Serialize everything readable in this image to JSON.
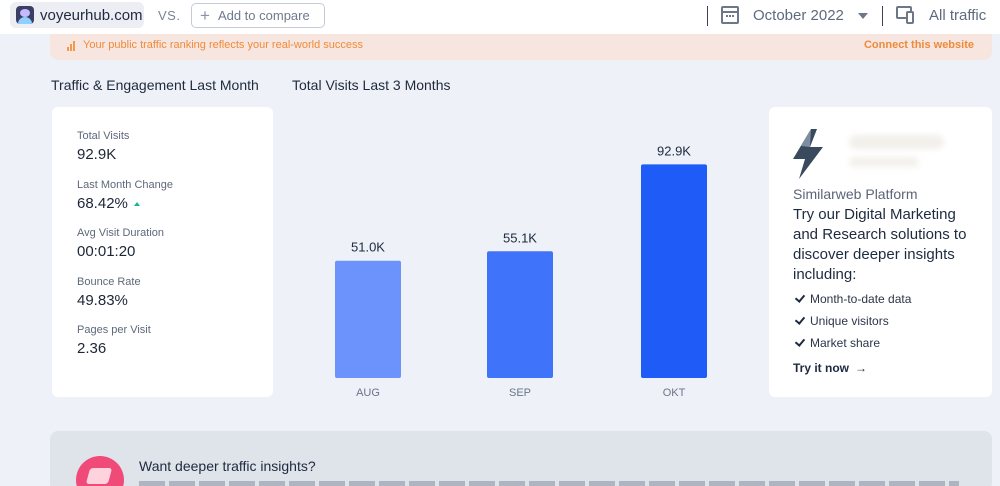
{
  "topbar": {
    "site": "voyeurhub.com",
    "vs": "VS.",
    "compare_label": "Add to compare",
    "date": "October 2022",
    "traffic": "All traffic"
  },
  "banner": {
    "text": "Your public traffic ranking reflects your real-world success",
    "link": "Connect this website"
  },
  "sections": {
    "engagement_title": "Traffic & Engagement Last Month",
    "visits_title": "Total Visits Last 3 Months"
  },
  "stats": [
    {
      "label": "Total Visits",
      "value": "92.9K"
    },
    {
      "label": "Last Month Change",
      "value": "68.42%",
      "trend": "up"
    },
    {
      "label": "Avg Visit Duration",
      "value": "00:01:20"
    },
    {
      "label": "Bounce Rate",
      "value": "49.83%"
    },
    {
      "label": "Pages per Visit",
      "value": "2.36"
    }
  ],
  "chart_data": {
    "type": "bar",
    "categories": [
      "AUG",
      "SEP",
      "OKT"
    ],
    "values": [
      51000,
      55100,
      92900
    ],
    "data_labels": [
      "51.0K",
      "55.1K",
      "92.9K"
    ],
    "colors": [
      "#6b93fb",
      "#3f74fa",
      "#1f5cf7"
    ],
    "ylim": [
      0,
      100000
    ],
    "grid": false
  },
  "promo": {
    "platform": "Similarweb Platform",
    "headline": "Try our Digital Marketing and Research solutions to discover deeper insights including:",
    "items": [
      "Month-to-date data",
      "Unique visitors",
      "Market share"
    ],
    "cta": "Try it now"
  },
  "bottom": {
    "title": "Want deeper traffic insights?"
  }
}
